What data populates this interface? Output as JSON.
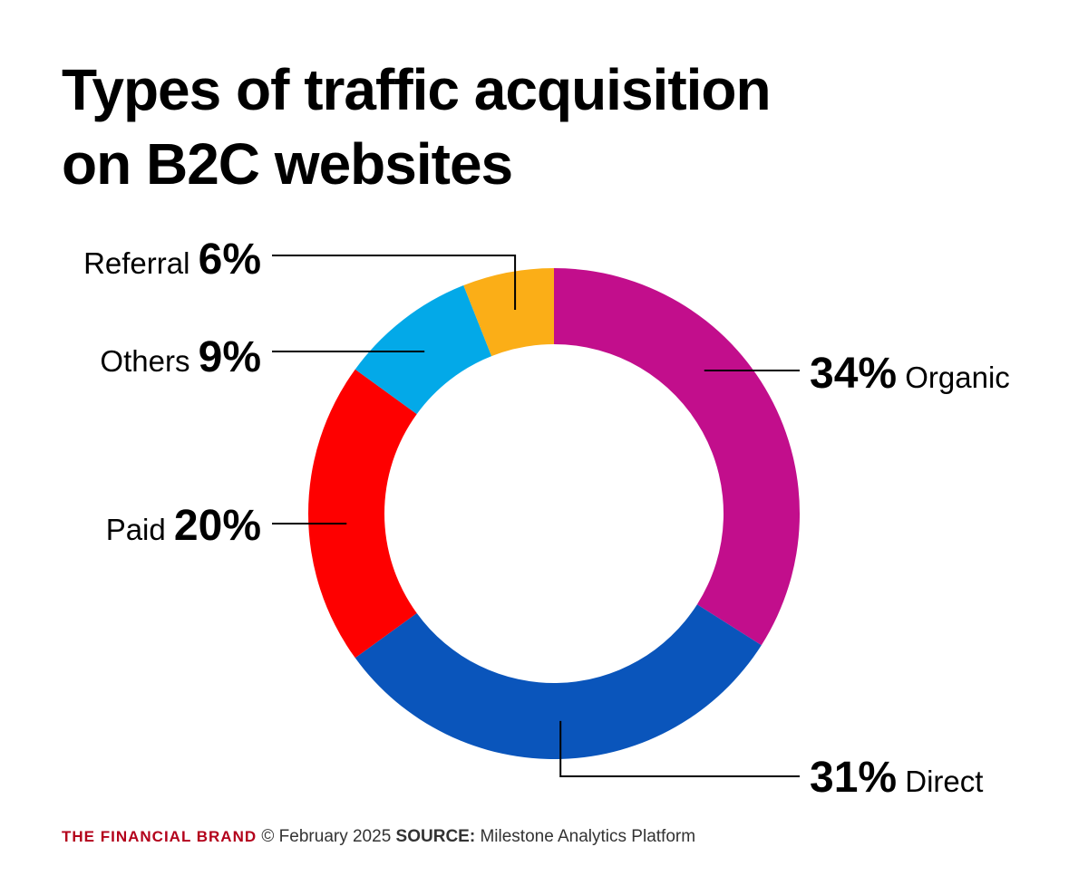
{
  "title": {
    "line1": "Types of traffic acquisition",
    "line2": "on B2C websites"
  },
  "chart_data": {
    "type": "pie",
    "donut": true,
    "unit": "%",
    "slices": [
      {
        "label": "Organic",
        "value": 34,
        "value_label": "34%",
        "color": "#c20e8c"
      },
      {
        "label": "Direct",
        "value": 31,
        "value_label": "31%",
        "color": "#0a55bb"
      },
      {
        "label": "Paid",
        "value": 20,
        "value_label": "20%",
        "color": "#fe0000"
      },
      {
        "label": "Others",
        "value": 9,
        "value_label": "9%",
        "color": "#03a9e8"
      },
      {
        "label": "Referral",
        "value": 6,
        "value_label": "6%",
        "color": "#fbae17"
      }
    ],
    "start_angle_deg": 0,
    "direction": "clockwise",
    "legend": "none",
    "labels": "outside with leader lines"
  },
  "footer": {
    "brand": "THE FINANCIAL BRAND",
    "date": "© February 2025",
    "source_label": "SOURCE:",
    "source": "Milestone Analytics Platform"
  }
}
